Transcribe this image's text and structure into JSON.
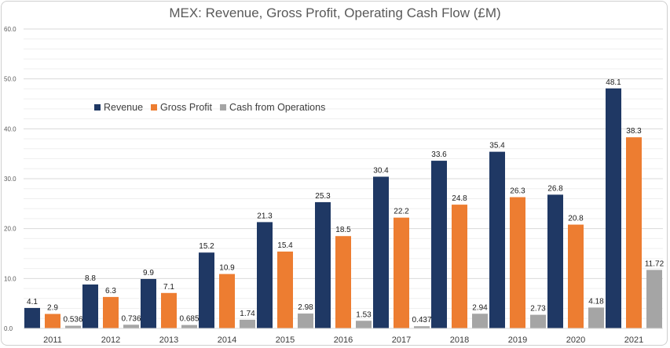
{
  "chart_data": {
    "type": "bar",
    "title": "MEX: Revenue, Gross Profit, Operating Cash Flow (£M)",
    "xlabel": "",
    "ylabel": "",
    "ylim": [
      0,
      60
    ],
    "yticks": [
      "0.0",
      "10.0",
      "20.0",
      "30.0",
      "40.0",
      "50.0",
      "60.0"
    ],
    "grid": true,
    "legend_position": "top-left",
    "categories": [
      "2011",
      "2012",
      "2013",
      "2014",
      "2015",
      "2016",
      "2017",
      "2018",
      "2019",
      "2020",
      "2021"
    ],
    "series": [
      {
        "name": "Revenue",
        "color": "#1f3864",
        "values": [
          4.1,
          8.8,
          9.9,
          15.2,
          21.3,
          25.3,
          30.4,
          33.6,
          35.4,
          26.8,
          48.1
        ],
        "labels": [
          "4.1",
          "8.8",
          "9.9",
          "15.2",
          "21.3",
          "25.3",
          "30.4",
          "33.6",
          "35.4",
          "26.8",
          "48.1"
        ]
      },
      {
        "name": "Gross Profit",
        "color": "#ed7d31",
        "values": [
          2.9,
          6.3,
          7.1,
          10.9,
          15.4,
          18.5,
          22.2,
          24.8,
          26.3,
          20.8,
          38.3
        ],
        "labels": [
          "2.9",
          "6.3",
          "7.1",
          "10.9",
          "15.4",
          "18.5",
          "22.2",
          "24.8",
          "26.3",
          "20.8",
          "38.3"
        ]
      },
      {
        "name": "Cash from Operations",
        "color": "#a5a5a5",
        "values": [
          0.536,
          0.736,
          0.685,
          1.74,
          2.98,
          1.53,
          0.437,
          2.94,
          2.73,
          4.18,
          11.72
        ],
        "labels": [
          "0.536",
          "0.736",
          "0.685",
          "1.74",
          "2.98",
          "1.53",
          "0.437",
          "2.94",
          "2.73",
          "4.18",
          "11.72"
        ]
      }
    ]
  }
}
